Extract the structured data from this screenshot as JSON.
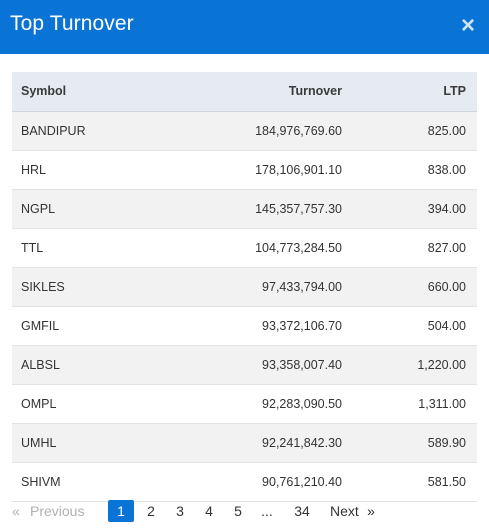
{
  "modal": {
    "title": "Top Turnover",
    "close_icon": "close-icon"
  },
  "table": {
    "headers": {
      "symbol": "Symbol",
      "turnover": "Turnover",
      "ltp": "LTP"
    },
    "rows": [
      {
        "symbol": "BANDIPUR",
        "turnover": "184,976,769.60",
        "ltp": "825.00"
      },
      {
        "symbol": "HRL",
        "turnover": "178,106,901.10",
        "ltp": "838.00"
      },
      {
        "symbol": "NGPL",
        "turnover": "145,357,757.30",
        "ltp": "394.00"
      },
      {
        "symbol": "TTL",
        "turnover": "104,773,284.50",
        "ltp": "827.00"
      },
      {
        "symbol": "SIKLES",
        "turnover": "97,433,794.00",
        "ltp": "660.00"
      },
      {
        "symbol": "GMFIL",
        "turnover": "93,372,106.70",
        "ltp": "504.00"
      },
      {
        "symbol": "ALBSL",
        "turnover": "93,358,007.40",
        "ltp": "1,220.00"
      },
      {
        "symbol": "OMPL",
        "turnover": "92,283,090.50",
        "ltp": "1,311.00"
      },
      {
        "symbol": "UMHL",
        "turnover": "92,241,842.30",
        "ltp": "589.90"
      },
      {
        "symbol": "SHIVM",
        "turnover": "90,761,210.40",
        "ltp": "581.50"
      }
    ]
  },
  "pagination": {
    "prev_arrow": "«",
    "prev_label": "Previous",
    "pages": [
      "1",
      "2",
      "3",
      "4",
      "5",
      "...",
      "34"
    ],
    "active_page": "1",
    "next_label": "Next",
    "next_arrow": "»",
    "accent_color": "#0a74d6"
  }
}
